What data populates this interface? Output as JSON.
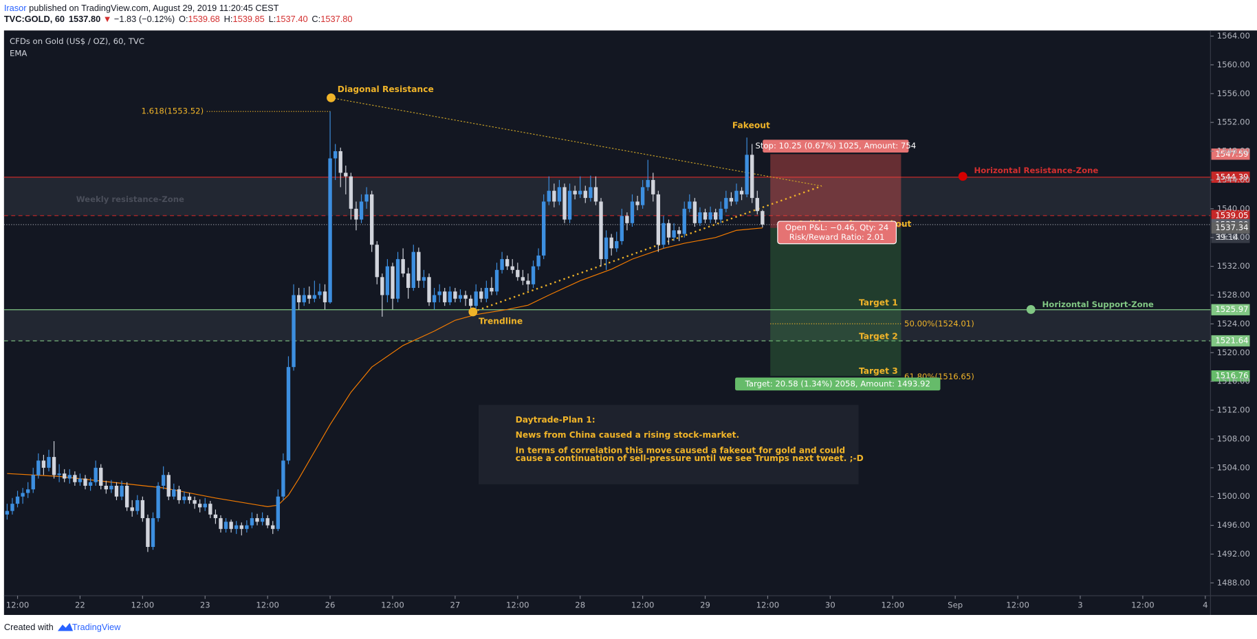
{
  "header": {
    "author": "Irasor",
    "published": " published on TradingView.com, August 29, 2019 11:20:45 CEST",
    "symbol": "TVC:GOLD, 60",
    "last": "1537.80",
    "change": "−1.83 (−0.12%)",
    "ohlc": [
      {
        "label": "O:",
        "value": "1539.68"
      },
      {
        "label": "H:",
        "value": "1539.85"
      },
      {
        "label": "L:",
        "value": "1537.40"
      },
      {
        "label": "C:",
        "value": "1537.80"
      }
    ]
  },
  "footer": {
    "created": "Created with",
    "brand": "TradingView"
  },
  "chart_data": {
    "type": "candlestick",
    "title": "CFDs on Gold (US$ / OZ), 60, TVC",
    "up_color": "#3d8fe0",
    "down_color": "#d1d4dc",
    "xlim": [
      -0.6,
      231
    ],
    "ylim": [
      1486.22,
      1564.78
    ],
    "xticks": [
      {
        "value": 2,
        "label": "12:00"
      },
      {
        "value": 14,
        "label": "22"
      },
      {
        "value": 26,
        "label": "12:00"
      },
      {
        "value": 38,
        "label": "23"
      },
      {
        "value": 50,
        "label": "12:00"
      },
      {
        "value": 62,
        "label": "26"
      },
      {
        "value": 74,
        "label": "12:00"
      },
      {
        "value": 86,
        "label": "27"
      },
      {
        "value": 98,
        "label": "12:00"
      },
      {
        "value": 110,
        "label": "28"
      },
      {
        "value": 122,
        "label": "12:00"
      },
      {
        "value": 134,
        "label": "29"
      },
      {
        "value": 146,
        "label": "12:00"
      },
      {
        "value": 158,
        "label": "30"
      },
      {
        "value": 170,
        "label": "12:00"
      },
      {
        "value": 182,
        "label": "Sep"
      },
      {
        "value": 194,
        "label": "12:00"
      },
      {
        "value": 206,
        "label": "3"
      },
      {
        "value": 218,
        "label": "12:00"
      },
      {
        "value": 230,
        "label": "4"
      }
    ],
    "yticks": [
      {
        "value": 1488,
        "label": "1488.00"
      },
      {
        "value": 1492,
        "label": "1492.00"
      },
      {
        "value": 1496,
        "label": "1496.00"
      },
      {
        "value": 1500,
        "label": "1500.00"
      },
      {
        "value": 1504,
        "label": "1504.00"
      },
      {
        "value": 1508,
        "label": "1508.00"
      },
      {
        "value": 1512,
        "label": "1512.00"
      },
      {
        "value": 1516,
        "label": "1516.00"
      },
      {
        "value": 1520,
        "label": "1520.00"
      },
      {
        "value": 1524,
        "label": "1524.00"
      },
      {
        "value": 1528,
        "label": "1528.00"
      },
      {
        "value": 1532,
        "label": "1532.00"
      },
      {
        "value": 1536,
        "label": "1536.00"
      },
      {
        "value": 1540,
        "label": "1540.00"
      },
      {
        "value": 1544,
        "label": "1544.00"
      },
      {
        "value": 1548,
        "label": "1548.00"
      },
      {
        "value": 1552,
        "label": "1552.00"
      },
      {
        "value": 1556,
        "label": "1556.00"
      },
      {
        "value": 1560,
        "label": "1560.00"
      },
      {
        "value": 1564,
        "label": "1564.00"
      }
    ],
    "ohlc": [
      [
        1497.5,
        1499,
        1496.8,
        1498
      ],
      [
        1498,
        1499.8,
        1497.5,
        1499
      ],
      [
        1499,
        1500.8,
        1498.5,
        1500
      ],
      [
        1500,
        1501.2,
        1499,
        1500.5
      ],
      [
        1500.5,
        1502,
        1499.8,
        1501
      ],
      [
        1501,
        1504,
        1500.5,
        1503
      ],
      [
        1503,
        1506,
        1502.5,
        1505
      ],
      [
        1505,
        1505.8,
        1503,
        1504
      ],
      [
        1504,
        1506.5,
        1503.5,
        1505.5
      ],
      [
        1505.5,
        1507.7,
        1502.5,
        1503
      ],
      [
        1503,
        1504.5,
        1502,
        1503.2
      ],
      [
        1503.2,
        1503.8,
        1502,
        1502.5
      ],
      [
        1502.5,
        1503.8,
        1501.8,
        1503
      ],
      [
        1503,
        1503.5,
        1501.5,
        1502
      ],
      [
        1502,
        1503.2,
        1501.5,
        1502.5
      ],
      [
        1502.5,
        1503,
        1501,
        1501.5
      ],
      [
        1501.5,
        1502.6,
        1500.8,
        1502
      ],
      [
        1502,
        1505,
        1501.5,
        1504
      ],
      [
        1504,
        1504.5,
        1501,
        1501.5
      ],
      [
        1501.5,
        1502.2,
        1500.4,
        1501
      ],
      [
        1501,
        1502.3,
        1500.5,
        1501.5
      ],
      [
        1501.5,
        1502,
        1499.5,
        1500
      ],
      [
        1500,
        1502.2,
        1499.5,
        1501.5
      ],
      [
        1501.5,
        1502,
        1498,
        1498.5
      ],
      [
        1498.5,
        1499.5,
        1497.2,
        1498
      ],
      [
        1498,
        1500.2,
        1497.5,
        1499.5
      ],
      [
        1499.5,
        1500,
        1496.5,
        1497
      ],
      [
        1497,
        1497.5,
        1492.3,
        1493
      ],
      [
        1493,
        1497.8,
        1492.6,
        1497
      ],
      [
        1497,
        1502,
        1496.5,
        1501.5
      ],
      [
        1501.5,
        1504.2,
        1501,
        1503
      ],
      [
        1503,
        1503.4,
        1499.5,
        1500
      ],
      [
        1500,
        1501.8,
        1499.6,
        1501
      ],
      [
        1501,
        1501.5,
        1499,
        1499.5
      ],
      [
        1499.5,
        1500.7,
        1499,
        1500
      ],
      [
        1500,
        1500.5,
        1499,
        1499.5
      ],
      [
        1499.5,
        1500,
        1498.3,
        1499
      ],
      [
        1499,
        1499.6,
        1497.8,
        1498.5
      ],
      [
        1498.5,
        1499.8,
        1498,
        1499
      ],
      [
        1499,
        1499.4,
        1497,
        1497.5
      ],
      [
        1497.5,
        1498.2,
        1496.2,
        1497
      ],
      [
        1497,
        1497.4,
        1495,
        1495.5
      ],
      [
        1495.5,
        1497,
        1495,
        1496.5
      ],
      [
        1496.5,
        1496.8,
        1495,
        1495.5
      ],
      [
        1495.5,
        1496.6,
        1494.8,
        1496
      ],
      [
        1496,
        1496.4,
        1494.6,
        1495.5
      ],
      [
        1495.5,
        1496.7,
        1495,
        1496
      ],
      [
        1496,
        1497.8,
        1495.6,
        1497
      ],
      [
        1497,
        1497.6,
        1496,
        1496.5
      ],
      [
        1496.5,
        1497.8,
        1496,
        1497
      ],
      [
        1497,
        1497.4,
        1495.6,
        1496
      ],
      [
        1496,
        1496.6,
        1494.8,
        1495.5
      ],
      [
        1495.5,
        1501,
        1495.2,
        1500
      ],
      [
        1500,
        1506,
        1499.5,
        1505
      ],
      [
        1505,
        1519.5,
        1504.5,
        1518
      ],
      [
        1518,
        1529.5,
        1517.5,
        1528
      ],
      [
        1528,
        1529,
        1526,
        1527
      ],
      [
        1527,
        1529,
        1526.5,
        1528
      ],
      [
        1528,
        1529.2,
        1526.8,
        1527.5
      ],
      [
        1527.5,
        1530,
        1527,
        1528
      ],
      [
        1528,
        1529.6,
        1527.5,
        1528.5
      ],
      [
        1528.5,
        1529.5,
        1526,
        1527
      ],
      [
        1527,
        1553.52,
        1526.8,
        1547
      ],
      [
        1547,
        1549,
        1544,
        1548
      ],
      [
        1548,
        1548.5,
        1543,
        1545
      ],
      [
        1545,
        1546,
        1542,
        1544.5
      ],
      [
        1544.5,
        1545,
        1538.5,
        1540
      ],
      [
        1540,
        1541,
        1537,
        1538.5
      ],
      [
        1538.5,
        1542,
        1538,
        1541
      ],
      [
        1541,
        1543,
        1540,
        1542
      ],
      [
        1542,
        1542.5,
        1534,
        1535
      ],
      [
        1535,
        1535.5,
        1529.5,
        1530.5
      ],
      [
        1530.5,
        1531,
        1525,
        1528
      ],
      [
        1528,
        1533,
        1527,
        1532
      ],
      [
        1532,
        1532.5,
        1526,
        1527.5
      ],
      [
        1527.5,
        1534,
        1527,
        1533
      ],
      [
        1533,
        1534.5,
        1530.5,
        1531
      ],
      [
        1531,
        1531.8,
        1527.5,
        1529
      ],
      [
        1529,
        1535,
        1528.6,
        1534
      ],
      [
        1534,
        1534.6,
        1529,
        1530
      ],
      [
        1530,
        1531.5,
        1529,
        1530.5
      ],
      [
        1530.5,
        1531,
        1526.5,
        1527
      ],
      [
        1527,
        1529,
        1526,
        1528
      ],
      [
        1528,
        1529.5,
        1527,
        1528.5
      ],
      [
        1528.5,
        1529,
        1526.5,
        1527
      ],
      [
        1527,
        1529.2,
        1526.6,
        1528.5
      ],
      [
        1528.5,
        1529,
        1527,
        1527.5
      ],
      [
        1527.5,
        1528.8,
        1527,
        1528
      ],
      [
        1528,
        1528.6,
        1526.5,
        1527.5
      ],
      [
        1527.5,
        1528,
        1525.8,
        1526.5
      ],
      [
        1526.5,
        1529.5,
        1526,
        1528.5
      ],
      [
        1528.5,
        1529,
        1527,
        1527.5
      ],
      [
        1527.5,
        1530,
        1527,
        1529
      ],
      [
        1529,
        1530.5,
        1528,
        1528.5
      ],
      [
        1528.5,
        1532.5,
        1528,
        1531.5
      ],
      [
        1531.5,
        1534,
        1531,
        1533
      ],
      [
        1533,
        1533.5,
        1531.5,
        1532
      ],
      [
        1532,
        1533,
        1531,
        1531.5
      ],
      [
        1531.5,
        1532.5,
        1530,
        1530.5
      ],
      [
        1530.5,
        1531.5,
        1529.4,
        1530
      ],
      [
        1530,
        1531,
        1528.6,
        1529.5
      ],
      [
        1529.5,
        1532.8,
        1529,
        1532
      ],
      [
        1532,
        1534.5,
        1531.5,
        1533.5
      ],
      [
        1533.5,
        1542,
        1533,
        1541
      ],
      [
        1541,
        1544.5,
        1540.5,
        1542.5
      ],
      [
        1542.5,
        1543.5,
        1540.2,
        1541
      ],
      [
        1541,
        1544,
        1540.5,
        1543
      ],
      [
        1543,
        1543.5,
        1538,
        1538.5
      ],
      [
        1538.5,
        1543.5,
        1538,
        1542.5
      ],
      [
        1542.5,
        1543.2,
        1541.3,
        1542
      ],
      [
        1542,
        1544.5,
        1541.5,
        1542.5
      ],
      [
        1542.5,
        1543.2,
        1540.8,
        1541.5
      ],
      [
        1541.5,
        1544.6,
        1541,
        1543
      ],
      [
        1543,
        1544.5,
        1540.5,
        1541
      ],
      [
        1541,
        1541.5,
        1532,
        1533
      ],
      [
        1533,
        1537,
        1531.5,
        1536
      ],
      [
        1536,
        1536.5,
        1533.5,
        1534.5
      ],
      [
        1534.5,
        1536.8,
        1534,
        1535.5
      ],
      [
        1535.5,
        1540,
        1535,
        1539
      ],
      [
        1539,
        1539.5,
        1537,
        1538
      ],
      [
        1538,
        1542,
        1537.5,
        1541
      ],
      [
        1541,
        1541.8,
        1539.8,
        1540.5
      ],
      [
        1540.5,
        1544,
        1540,
        1543
      ],
      [
        1543,
        1546.8,
        1542.5,
        1544
      ],
      [
        1544,
        1545,
        1541,
        1542
      ],
      [
        1542,
        1542.5,
        1534,
        1535
      ],
      [
        1535,
        1539,
        1534.5,
        1538
      ],
      [
        1538,
        1538.5,
        1535,
        1536
      ],
      [
        1536,
        1538,
        1535.5,
        1537
      ],
      [
        1537,
        1537.5,
        1535.5,
        1536.5
      ],
      [
        1536.5,
        1541,
        1536,
        1540
      ],
      [
        1540,
        1542,
        1539.5,
        1541
      ],
      [
        1541,
        1541.5,
        1537.5,
        1538
      ],
      [
        1538,
        1540.2,
        1537.6,
        1539.5
      ],
      [
        1539.5,
        1540,
        1538,
        1538.5
      ],
      [
        1538.5,
        1540.3,
        1538,
        1539.5
      ],
      [
        1539.5,
        1540,
        1538,
        1538.5
      ],
      [
        1538.5,
        1541,
        1538,
        1540
      ],
      [
        1540,
        1542.5,
        1539.5,
        1541.5
      ],
      [
        1541.5,
        1542.3,
        1540.4,
        1541
      ],
      [
        1541,
        1543.5,
        1540.6,
        1542.5
      ],
      [
        1542.5,
        1543,
        1541.2,
        1542
      ],
      [
        1542,
        1549.9,
        1541.6,
        1547.5
      ],
      [
        1547.5,
        1549,
        1540.8,
        1541.5
      ],
      [
        1541.5,
        1542.5,
        1539.2,
        1539.68
      ],
      [
        1539.68,
        1539.85,
        1537.4,
        1537.8
      ]
    ],
    "ema": {
      "name": "EMA",
      "color": "#f57c00",
      "x": [
        0,
        10,
        20,
        30,
        40,
        50,
        52,
        54,
        56,
        58,
        60,
        62,
        66,
        70,
        76,
        82,
        86,
        90,
        96,
        100,
        104,
        110,
        116,
        120,
        126,
        130,
        136,
        140,
        145
      ],
      "values": [
        1503.2,
        1502.8,
        1502,
        1501.2,
        1499.8,
        1498.6,
        1498.8,
        1500.2,
        1502.5,
        1505,
        1507.5,
        1510,
        1514.5,
        1518,
        1521,
        1523,
        1524.5,
        1525.3,
        1526,
        1526.6,
        1528,
        1530,
        1531.6,
        1533,
        1534.5,
        1535.2,
        1536,
        1537,
        1537.34
      ]
    },
    "price_lines": [
      {
        "value": 1544.39,
        "color": "#c62828",
        "style": "solid"
      },
      {
        "value": 1539.05,
        "color": "#c62828",
        "style": "dashed"
      },
      {
        "value": 1537.8,
        "label": "1537.80",
        "color": "#5d606b",
        "style": "dotted",
        "countdown": "39:14"
      },
      {
        "value": 1525.97,
        "color": "#81c784",
        "style": "solid"
      },
      {
        "value": 1521.64,
        "color": "#81c784",
        "style": "dashed"
      }
    ],
    "position": {
      "entry": 1537.34,
      "stop": 1547.59,
      "target": 1516.76,
      "x_start": 146.5,
      "x_end": 171.6,
      "stop_label": "Stop: 10.25 (0.67%) 1025, Amount: 754",
      "pnl_label": "Open P&L: −0.46, Qty: 24",
      "rr_label": "Risk/Reward Ratio: 2.01",
      "target_label": "Target: 20.58 (1.34%) 2058, Amount: 1493.92"
    },
    "fib": [
      {
        "value": 1553.52,
        "label": "1.618(1553.52)"
      },
      {
        "value": 1524.01,
        "label": "50.00%(1524.01)"
      },
      {
        "value": 1516.65,
        "label": "61.80%(1516.65)"
      }
    ],
    "annotations": {
      "diagonal": "Diagonal Resistance",
      "fakeout": "Fakeout",
      "trendline": "Trendline",
      "weekly_zone": "Weekly resistance-Zone",
      "res_zone": "Horizontal Resistance-Zone",
      "sup_zone": "Horizontal Support-Zone",
      "target1": "Target 1",
      "target2": "Target 2",
      "target3": "Target 3",
      "sell": "Sell here after breakout"
    },
    "note": {
      "title": "Daytrade-Plan 1:",
      "lines": [
        "News from China caused a rising stock-market.",
        "In terms of correlation this move caused a fakeout for gold and could",
        "cause a continuation of sell-pressure until we see Trumps next tweet. ;-D"
      ]
    }
  }
}
